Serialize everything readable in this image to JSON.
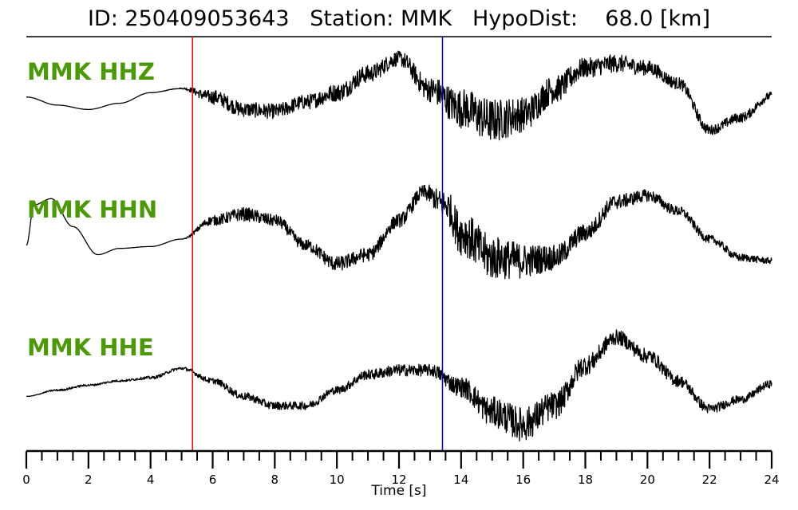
{
  "header": {
    "title": "ID: 250409053643   Station: MMK   HypoDist:    68.0 [km]"
  },
  "chart_data": {
    "type": "line",
    "title": "ID: 250409053643   Station: MMK   HypoDist:    68.0 [km]",
    "xlabel": "Time [s]",
    "ylabel": "",
    "xlim": [
      0,
      24
    ],
    "x_ticks": [
      0,
      2,
      4,
      6,
      8,
      10,
      12,
      14,
      16,
      18,
      20,
      22,
      24
    ],
    "x_tick_labels": [
      "0",
      "2",
      "4",
      "6",
      "8",
      "10",
      "12",
      "14",
      "16",
      "18",
      "20",
      "22",
      "24"
    ],
    "minor_tick_step": 0.5,
    "grid": false,
    "series_color": "#000000",
    "label_color": "#4a9a05",
    "p_pick": {
      "time": 5.35,
      "color": "#ff0000"
    },
    "s_pick": {
      "time": 13.4,
      "color": "#0000cc"
    },
    "series": [
      {
        "name": "MMK HHZ",
        "t": [
          0,
          1,
          2,
          3,
          4,
          5,
          6,
          7,
          8,
          9,
          10,
          11,
          12,
          13,
          14,
          15,
          16,
          17,
          18,
          19,
          20,
          21,
          22,
          23,
          24
        ],
        "v": [
          0.08,
          -0.05,
          -0.12,
          -0.02,
          0.15,
          0.22,
          0.08,
          -0.12,
          -0.15,
          0.0,
          0.15,
          0.45,
          0.7,
          0.2,
          -0.1,
          -0.3,
          -0.2,
          0.2,
          0.55,
          0.62,
          0.55,
          0.3,
          -0.45,
          -0.25,
          0.1
        ],
        "noise": [
          0,
          0,
          0,
          0,
          0,
          0.01,
          0.15,
          0.15,
          0.15,
          0.15,
          0.18,
          0.18,
          0.15,
          0.25,
          0.4,
          0.45,
          0.35,
          0.28,
          0.2,
          0.18,
          0.15,
          0.12,
          0.1,
          0.1,
          0.08
        ]
      },
      {
        "name": "MMK HHN",
        "t": [
          0,
          0.25,
          0.8,
          1.5,
          2.3,
          3,
          4,
          5,
          6,
          7,
          8,
          9,
          10,
          11,
          12,
          12.8,
          13.5,
          14,
          15,
          16,
          17,
          18,
          19,
          20,
          21,
          22,
          23,
          24
        ],
        "v": [
          -0.1,
          0.55,
          0.65,
          0.2,
          -0.25,
          -0.15,
          -0.12,
          0.0,
          0.3,
          0.4,
          0.3,
          -0.1,
          -0.4,
          -0.25,
          0.3,
          0.75,
          0.55,
          0.1,
          -0.3,
          -0.35,
          -0.3,
          0.1,
          0.6,
          0.7,
          0.45,
          0.0,
          -0.3,
          -0.35
        ],
        "noise": [
          0,
          0,
          0,
          0,
          0,
          0,
          0,
          0,
          0.1,
          0.14,
          0.12,
          0.12,
          0.15,
          0.14,
          0.14,
          0.15,
          0.3,
          0.45,
          0.45,
          0.35,
          0.25,
          0.18,
          0.15,
          0.12,
          0.1,
          0.08,
          0.08,
          0.06
        ]
      },
      {
        "name": "MMK HHE",
        "t": [
          0,
          1,
          2,
          3,
          4,
          5,
          6,
          7,
          8,
          9,
          10,
          11,
          12,
          13,
          14,
          15,
          16,
          17,
          18,
          19,
          20,
          21,
          22,
          23,
          24
        ],
        "v": [
          -0.3,
          -0.2,
          -0.12,
          -0.05,
          0.0,
          0.15,
          -0.05,
          -0.3,
          -0.45,
          -0.45,
          -0.2,
          0.05,
          0.12,
          0.12,
          -0.15,
          -0.55,
          -0.75,
          -0.45,
          0.2,
          0.65,
          0.35,
          -0.05,
          -0.5,
          -0.35,
          -0.1
        ],
        "noise": [
          0,
          0.02,
          0.02,
          0.02,
          0.03,
          0.03,
          0.06,
          0.08,
          0.08,
          0.08,
          0.08,
          0.1,
          0.12,
          0.12,
          0.2,
          0.3,
          0.35,
          0.28,
          0.2,
          0.15,
          0.15,
          0.12,
          0.1,
          0.08,
          0.08
        ]
      }
    ]
  }
}
